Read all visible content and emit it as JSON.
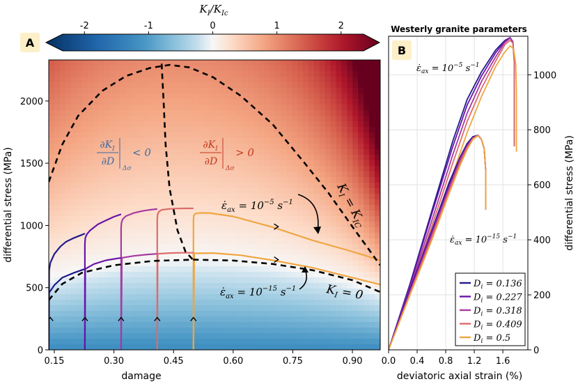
{
  "colorbar": {
    "label": "K_I / K_Ic",
    "label_main": "K",
    "label_sub1": "I",
    "label_slash": "/K",
    "label_sub2": "Ic",
    "ticks": [
      "-2",
      "-1",
      "0",
      "1",
      "2"
    ],
    "tick_values": [
      -2,
      -1,
      0,
      1,
      2
    ],
    "range": [
      -2.6,
      2.6
    ]
  },
  "panel_a": {
    "badge": "A",
    "annotations": {
      "lhs": "∂K_I/∂D |Δσ < 0",
      "lhs_op": "< 0",
      "rhs": "∂K_I/∂D |Δσ > 0",
      "rhs_op": "> 0",
      "deriv_num": "∂K",
      "deriv_num_sub": "I",
      "deriv_den": "∂D",
      "deriv_eval": "Δσ",
      "rate_fast": "ε̇ax = 10^-5 s^-1",
      "rate_slow": "ε̇ax = 10^-15 s^-1",
      "eps": "ε̇",
      "eps_sub": "ax",
      "eq": " = 10",
      "exp_fast": "−5",
      "exp_slow": "−15",
      "unit": "s",
      "unit_exp": "−1",
      "kic_label": "K_I = K_IC",
      "k0_label": "K_I = 0",
      "k_main": "K",
      "k_sub": "I",
      "kic_rhs": " = K",
      "kic_sub": "IC",
      "k0_rhs": " = 0"
    }
  },
  "panel_b": {
    "badge": "B",
    "title": "Westerly granite parameters",
    "annotations": {
      "rate_fast": "ε̇ax = 10^-5 s^-1",
      "rate_slow": "ε̇ax = 10^-15 s^-1"
    },
    "legend": [
      {
        "symbol": "D",
        "sub": "i",
        "value": " = 0.136",
        "color": "#1f1a8a"
      },
      {
        "symbol": "D",
        "sub": "i",
        "value": " = 0.227",
        "color": "#6a13a8"
      },
      {
        "symbol": "D",
        "sub": "i",
        "value": " = 0.318",
        "color": "#a63aa0"
      },
      {
        "symbol": "D",
        "sub": "i",
        "value": " = 0.409",
        "color": "#dd6b6b"
      },
      {
        "symbol": "D",
        "sub": "i",
        "value": " = 0.5",
        "color": "#f0a540"
      }
    ]
  },
  "chart_data": [
    {
      "type": "contour",
      "title": "",
      "xlabel": "damage",
      "ylabel": "differential stress (MPa)",
      "xlim": [
        0.136,
        0.97
      ],
      "ylim": [
        0,
        2330
      ],
      "xticks": [
        0.15,
        0.3,
        0.45,
        0.6,
        0.75,
        0.9
      ],
      "xtick_labels": [
        "0.15",
        "0.30",
        "0.45",
        "0.60",
        "0.75",
        "0.90"
      ],
      "yticks": [
        0,
        500,
        1000,
        1500,
        2000
      ],
      "ytick_labels": [
        "0",
        "500",
        "1000",
        "1500",
        "2000"
      ],
      "series": [
        {
          "name": "D_i = 0.136, fast",
          "color": "#1f1a8a",
          "x": [
            0.136,
            0.137,
            0.14,
            0.15,
            0.165,
            0.18,
            0.2,
            0.22,
            0.227
          ],
          "y": [
            0,
            640,
            700,
            770,
            830,
            870,
            900,
            925,
            935
          ]
        },
        {
          "name": "D_i = 0.227, fast",
          "color": "#6a13a8",
          "x": [
            0.227,
            0.227,
            0.228,
            0.232,
            0.24,
            0.26,
            0.28,
            0.3,
            0.318
          ],
          "y": [
            0,
            850,
            900,
            930,
            960,
            1010,
            1040,
            1070,
            1090
          ]
        },
        {
          "name": "D_i = 0.318, fast",
          "color": "#a63aa0",
          "x": [
            0.318,
            0.318,
            0.319,
            0.322,
            0.33,
            0.35,
            0.37,
            0.39,
            0.409
          ],
          "y": [
            0,
            980,
            1020,
            1050,
            1075,
            1100,
            1115,
            1125,
            1132
          ]
        },
        {
          "name": "D_i = 0.409, fast",
          "color": "#dd6b6b",
          "x": [
            0.409,
            0.409,
            0.41,
            0.413,
            0.42,
            0.44,
            0.46,
            0.48,
            0.5
          ],
          "y": [
            0,
            1050,
            1090,
            1110,
            1125,
            1133,
            1136,
            1137,
            1137
          ]
        },
        {
          "name": "D_i = 0.5, fast",
          "color": "#f0a540",
          "x": [
            0.5,
            0.5,
            0.501,
            0.505,
            0.515,
            0.54,
            0.6,
            0.7,
            0.8,
            0.9,
            0.97
          ],
          "y": [
            0,
            1040,
            1080,
            1095,
            1100,
            1100,
            1072,
            985,
            880,
            790,
            720
          ]
        },
        {
          "name": "D_i = 0.136, slow",
          "color": "#1f1a8a",
          "x": [
            0.136,
            0.137,
            0.15,
            0.17,
            0.2,
            0.227
          ],
          "y": [
            0,
            460,
            520,
            580,
            620,
            650
          ]
        },
        {
          "name": "D_i = 0.227, slow",
          "color": "#6a13a8",
          "x": [
            0.227,
            0.228,
            0.25,
            0.28,
            0.318
          ],
          "y": [
            0,
            650,
            690,
            720,
            740
          ]
        },
        {
          "name": "D_i = 0.318, slow",
          "color": "#a63aa0",
          "x": [
            0.318,
            0.32,
            0.35,
            0.38,
            0.409
          ],
          "y": [
            0,
            740,
            755,
            765,
            772
          ]
        },
        {
          "name": "D_i = 0.409, slow",
          "color": "#dd6b6b",
          "x": [
            0.409,
            0.41,
            0.44,
            0.47,
            0.5
          ],
          "y": [
            0,
            772,
            778,
            780,
            780
          ]
        },
        {
          "name": "D_i = 0.5, slow",
          "color": "#f0a540",
          "x": [
            0.5,
            0.502,
            0.55,
            0.62,
            0.7,
            0.8,
            0.9,
            0.97
          ],
          "y": [
            0,
            776,
            778,
            760,
            720,
            660,
            580,
            525
          ]
        },
        {
          "name": "K_I = K_IC",
          "style": "dashed",
          "color": "#000000",
          "x": [
            0.136,
            0.17,
            0.21,
            0.27,
            0.33,
            0.39,
            0.44,
            0.49,
            0.55,
            0.62,
            0.7,
            0.78,
            0.84,
            0.9,
            0.97
          ],
          "y": [
            1350,
            1650,
            1880,
            2080,
            2200,
            2265,
            2290,
            2270,
            2190,
            2040,
            1810,
            1500,
            1260,
            990,
            680
          ]
        },
        {
          "name": "K_I = 0",
          "style": "dashed",
          "color": "#000000",
          "x": [
            0.136,
            0.17,
            0.22,
            0.3,
            0.4,
            0.5,
            0.6,
            0.7,
            0.8,
            0.9,
            0.97
          ],
          "y": [
            400,
            530,
            620,
            680,
            715,
            725,
            718,
            690,
            640,
            560,
            465
          ]
        },
        {
          "name": "dK_I/dD = 0",
          "style": "dashed",
          "color": "#000000",
          "x": [
            0.42,
            0.425,
            0.43,
            0.44,
            0.46,
            0.48,
            0.5
          ],
          "y": [
            2300,
            2000,
            1650,
            1300,
            960,
            790,
            720
          ]
        }
      ]
    },
    {
      "type": "line",
      "title": "Westerly granite parameters",
      "xlabel": "deviatoric axial strain (%)",
      "ylabel": "differential stress (MPa)",
      "xlim": [
        0,
        1.95
      ],
      "ylim": [
        0,
        1140
      ],
      "xticks": [
        0.0,
        0.4,
        0.8,
        1.2,
        1.6
      ],
      "xtick_labels": [
        "0.0",
        "0.4",
        "0.8",
        "1.2",
        "1.6"
      ],
      "yticks": [
        0,
        200,
        400,
        600,
        800,
        1000
      ],
      "ytick_labels": [
        "0",
        "200",
        "400",
        "600",
        "800",
        "1000"
      ],
      "series": [
        {
          "name": "D_i = 0.136, fast",
          "color": "#1f1a8a",
          "x": [
            0,
            0.3,
            0.6,
            0.9,
            1.1,
            1.3,
            1.5,
            1.63,
            1.7,
            1.74,
            1.76,
            1.76
          ],
          "y": [
            0,
            240,
            500,
            760,
            910,
            1010,
            1090,
            1125,
            1135,
            1120,
            1050,
            740
          ]
        },
        {
          "name": "D_i = 0.227, fast",
          "color": "#6a13a8",
          "x": [
            0,
            0.3,
            0.6,
            0.9,
            1.1,
            1.3,
            1.5,
            1.63,
            1.7,
            1.74,
            1.76,
            1.76
          ],
          "y": [
            0,
            235,
            490,
            740,
            890,
            995,
            1080,
            1123,
            1135,
            1120,
            1050,
            740
          ]
        },
        {
          "name": "D_i = 0.318, fast",
          "color": "#a63aa0",
          "x": [
            0,
            0.3,
            0.6,
            0.9,
            1.1,
            1.3,
            1.5,
            1.62,
            1.7,
            1.74,
            1.76,
            1.76
          ],
          "y": [
            0,
            225,
            465,
            710,
            860,
            975,
            1065,
            1115,
            1133,
            1120,
            1050,
            740
          ]
        },
        {
          "name": "D_i = 0.409, fast",
          "color": "#dd6b6b",
          "x": [
            0,
            0.3,
            0.6,
            0.9,
            1.1,
            1.3,
            1.5,
            1.63,
            1.7,
            1.74,
            1.76,
            1.76
          ],
          "y": [
            0,
            215,
            445,
            680,
            830,
            950,
            1050,
            1110,
            1125,
            1115,
            1040,
            740
          ]
        },
        {
          "name": "D_i = 0.5, fast",
          "color": "#f0a540",
          "x": [
            0,
            0.3,
            0.6,
            0.9,
            1.1,
            1.3,
            1.5,
            1.62,
            1.7,
            1.75,
            1.78,
            1.79,
            1.79
          ],
          "y": [
            0,
            205,
            420,
            640,
            790,
            920,
            1030,
            1080,
            1105,
            1095,
            1040,
            940,
            720
          ]
        },
        {
          "name": "D_i = 0.136, slow",
          "color": "#1f1a8a",
          "x": [
            0,
            0.3,
            0.6,
            0.85,
            1.0,
            1.1,
            1.18,
            1.25,
            1.3,
            1.34,
            1.36,
            1.36
          ],
          "y": [
            0,
            220,
            430,
            610,
            700,
            750,
            775,
            780,
            765,
            730,
            650,
            510
          ]
        },
        {
          "name": "D_i = 0.227, slow",
          "color": "#6a13a8",
          "x": [
            0,
            0.3,
            0.6,
            0.85,
            1.0,
            1.1,
            1.18,
            1.25,
            1.3,
            1.34,
            1.36,
            1.36
          ],
          "y": [
            0,
            215,
            425,
            600,
            695,
            745,
            772,
            780,
            765,
            730,
            650,
            510
          ]
        },
        {
          "name": "D_i = 0.318, slow",
          "color": "#a63aa0",
          "x": [
            0,
            0.3,
            0.6,
            0.85,
            1.0,
            1.1,
            1.18,
            1.25,
            1.3,
            1.34,
            1.36,
            1.36
          ],
          "y": [
            0,
            210,
            415,
            590,
            690,
            740,
            770,
            780,
            765,
            730,
            650,
            510
          ]
        },
        {
          "name": "D_i = 0.409, slow",
          "color": "#dd6b6b",
          "x": [
            0,
            0.3,
            0.6,
            0.85,
            1.0,
            1.1,
            1.18,
            1.25,
            1.3,
            1.34,
            1.36,
            1.36
          ],
          "y": [
            0,
            205,
            405,
            580,
            680,
            735,
            768,
            779,
            765,
            730,
            650,
            510
          ]
        },
        {
          "name": "D_i = 0.5, slow",
          "color": "#f0a540",
          "x": [
            0,
            0.3,
            0.6,
            0.85,
            1.0,
            1.1,
            1.18,
            1.25,
            1.3,
            1.34,
            1.36,
            1.36
          ],
          "y": [
            0,
            200,
            395,
            570,
            670,
            728,
            765,
            778,
            765,
            730,
            650,
            510
          ]
        }
      ]
    }
  ]
}
